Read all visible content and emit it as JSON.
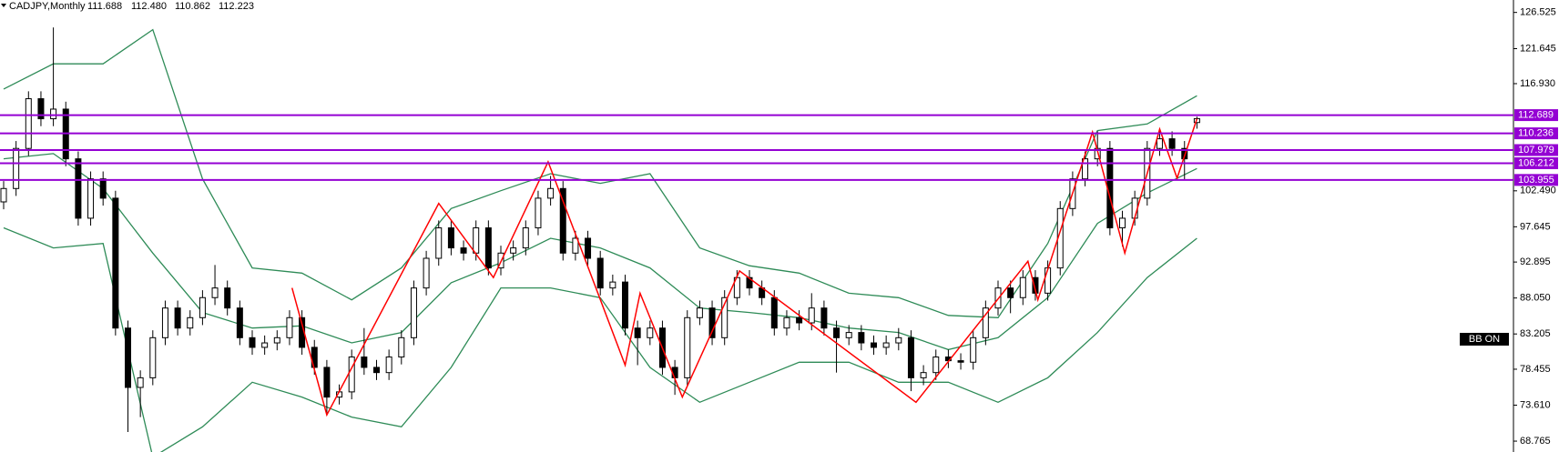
{
  "chart_data": {
    "type": "candlestick",
    "symbol": "CADJPY,Monthly",
    "header_values": [
      "111.688",
      "112.480",
      "110.862",
      "112.223"
    ],
    "indicator_label": "BB ON",
    "ylim": [
      67.3,
      128.2
    ],
    "yticks": [
      126.525,
      121.645,
      {
        "value": 116.93,
        "label": "116.930"
      },
      {
        "value": 102.49,
        "label": "102.490"
      },
      97.645,
      92.895,
      {
        "value": 88.05,
        "label": "88.050"
      },
      83.205,
      78.455,
      {
        "value": 73.61,
        "label": "73.610"
      },
      68.765
    ],
    "up_color": "#ffffff",
    "down_color": "#000000",
    "open": [
      101.0,
      102.8,
      108.2,
      114.9,
      112.2,
      113.5,
      106.8,
      98.8,
      104.1,
      101.5,
      84.0,
      76.0,
      77.3,
      82.7,
      86.7,
      84.0,
      85.4,
      88.1,
      89.4,
      86.7,
      82.7,
      81.4,
      82.0,
      82.7,
      85.4,
      81.4,
      78.7,
      74.7,
      75.4,
      80.1,
      78.7,
      78.0,
      80.1,
      82.7,
      89.4,
      93.4,
      97.5,
      94.8,
      94.1,
      97.5,
      92.1,
      94.1,
      94.8,
      97.5,
      101.5,
      102.8,
      94.1,
      96.1,
      93.4,
      89.4,
      90.2,
      84.0,
      82.7,
      84.0,
      78.7,
      77.3,
      85.4,
      86.7,
      82.7,
      88.1,
      90.8,
      89.4,
      88.1,
      84.0,
      85.4,
      84.7,
      86.7,
      84.0,
      82.7,
      83.4,
      82.0,
      81.4,
      82.0,
      82.7,
      77.3,
      78.0,
      80.1,
      79.6,
      79.4,
      82.7,
      86.7,
      89.4,
      88.1,
      90.8,
      88.7,
      92.1,
      100.1,
      104.1,
      106.8,
      108.2,
      97.5,
      98.8,
      101.5,
      108.2,
      109.5,
      108.2,
      111.688
    ],
    "high": [
      103.8,
      109.2,
      115.9,
      115.9,
      124.5,
      114.5,
      107.8,
      105.1,
      105.1,
      102.5,
      85.0,
      78.3,
      83.7,
      87.7,
      87.7,
      86.4,
      89.1,
      92.5,
      90.4,
      87.7,
      83.7,
      83.0,
      83.7,
      86.4,
      86.4,
      82.4,
      79.7,
      76.4,
      81.1,
      84.0,
      79.7,
      81.1,
      83.7,
      90.4,
      94.4,
      98.5,
      98.5,
      95.8,
      98.5,
      98.5,
      95.1,
      95.8,
      98.5,
      102.5,
      104.5,
      103.8,
      97.1,
      97.1,
      94.4,
      91.2,
      91.2,
      85.0,
      85.0,
      85.0,
      79.7,
      86.4,
      87.7,
      87.7,
      89.1,
      91.8,
      91.8,
      90.4,
      89.1,
      86.4,
      86.4,
      88.7,
      87.7,
      85.0,
      84.4,
      84.4,
      83.0,
      83.0,
      84.0,
      83.7,
      79.0,
      81.1,
      81.1,
      80.6,
      83.7,
      87.7,
      90.4,
      90.4,
      91.8,
      91.8,
      93.1,
      101.1,
      105.1,
      107.8,
      110.5,
      109.2,
      99.8,
      102.5,
      109.2,
      110.5,
      110.5,
      109.2,
      112.48
    ],
    "low": [
      100.0,
      101.8,
      107.2,
      111.2,
      111.2,
      105.8,
      97.8,
      97.8,
      100.5,
      83.0,
      70.0,
      72.0,
      76.3,
      81.7,
      83.0,
      83.0,
      84.4,
      87.1,
      85.7,
      81.7,
      80.4,
      80.4,
      81.0,
      81.7,
      80.4,
      77.7,
      72.5,
      73.7,
      74.4,
      77.7,
      77.0,
      77.0,
      79.1,
      81.7,
      88.4,
      92.4,
      93.8,
      93.1,
      93.1,
      91.1,
      91.1,
      93.1,
      93.8,
      96.5,
      100.5,
      93.1,
      93.1,
      92.4,
      88.4,
      88.4,
      83.0,
      79.0,
      81.7,
      77.7,
      75.0,
      76.3,
      84.4,
      81.7,
      81.7,
      87.1,
      88.4,
      87.1,
      83.0,
      83.0,
      83.7,
      83.7,
      83.0,
      78.0,
      81.7,
      81.0,
      80.4,
      80.4,
      81.0,
      75.5,
      76.3,
      77.0,
      78.6,
      78.4,
      78.4,
      81.7,
      85.7,
      86.0,
      87.1,
      87.7,
      87.7,
      91.1,
      99.1,
      103.1,
      105.8,
      96.5,
      95.0,
      97.8,
      100.5,
      107.2,
      107.2,
      104.0,
      110.862
    ],
    "close": [
      102.8,
      108.2,
      114.9,
      112.2,
      113.5,
      106.8,
      98.8,
      104.1,
      101.5,
      84.0,
      76.0,
      77.3,
      82.7,
      86.7,
      84.0,
      85.4,
      88.1,
      89.4,
      86.7,
      82.7,
      81.4,
      82.0,
      82.7,
      85.4,
      81.4,
      78.7,
      74.7,
      75.4,
      80.1,
      78.7,
      78.0,
      80.1,
      82.7,
      89.4,
      93.4,
      97.5,
      94.8,
      94.1,
      97.5,
      92.1,
      94.1,
      94.8,
      97.5,
      101.5,
      102.8,
      94.1,
      96.1,
      93.4,
      89.4,
      90.2,
      84.0,
      82.7,
      84.0,
      78.7,
      77.3,
      85.4,
      86.7,
      82.7,
      88.1,
      90.8,
      89.4,
      88.1,
      84.0,
      85.4,
      84.7,
      86.7,
      84.0,
      82.7,
      83.4,
      82.0,
      81.4,
      82.0,
      82.7,
      77.3,
      78.0,
      80.1,
      79.6,
      79.4,
      82.7,
      86.7,
      89.4,
      88.1,
      90.8,
      88.7,
      92.1,
      100.1,
      104.1,
      106.8,
      108.2,
      97.5,
      98.8,
      101.5,
      108.2,
      109.5,
      108.2,
      106.8,
      112.223
    ],
    "bands": {
      "color": "#2e8b57",
      "x": [
        0,
        4,
        8,
        12,
        16,
        20,
        24,
        28,
        32,
        36,
        40,
        44,
        48,
        52,
        56,
        60,
        64,
        68,
        72,
        76,
        80,
        84,
        88,
        92,
        96
      ],
      "upper": [
        116.2,
        119.6,
        119.6,
        124.2,
        104.1,
        92.1,
        91.4,
        87.8,
        92.1,
        100.1,
        102.5,
        104.8,
        103.5,
        104.8,
        94.8,
        92.4,
        91.4,
        88.7,
        88.1,
        85.7,
        85.4,
        95.4,
        110.6,
        111.5,
        115.3
      ],
      "middle": [
        106.8,
        107.5,
        102.8,
        94.1,
        86.1,
        84.0,
        84.3,
        82.0,
        83.4,
        90.1,
        92.8,
        96.1,
        94.8,
        92.1,
        86.7,
        86.1,
        85.4,
        84.0,
        83.4,
        81.1,
        82.7,
        88.1,
        98.1,
        102.2,
        105.5
      ],
      "lower": [
        97.5,
        94.8,
        95.4,
        66.6,
        70.7,
        76.7,
        74.7,
        72.0,
        70.7,
        78.7,
        89.4,
        89.4,
        88.1,
        78.7,
        74.0,
        76.7,
        79.4,
        79.4,
        76.7,
        76.7,
        74.0,
        77.3,
        83.4,
        90.8,
        96.1
      ]
    },
    "zigzag": {
      "color": "#ff0000",
      "x": [
        23.2,
        26,
        35,
        39.4,
        43.8,
        50,
        51.2,
        54.6,
        59.2,
        73.4,
        82.4,
        83.2,
        87.6,
        90.2,
        93,
        94.4,
        96
      ],
      "values": [
        89.4,
        72.3,
        100.8,
        90.8,
        106.4,
        79.0,
        88.7,
        74.7,
        91.7,
        74.0,
        93.0,
        87.8,
        110.4,
        94.1,
        110.8,
        104.2,
        112.2
      ]
    },
    "levels": {
      "color": "#9400d3",
      "values": [
        112.689,
        110.236,
        107.979,
        106.212,
        103.955
      ]
    }
  }
}
